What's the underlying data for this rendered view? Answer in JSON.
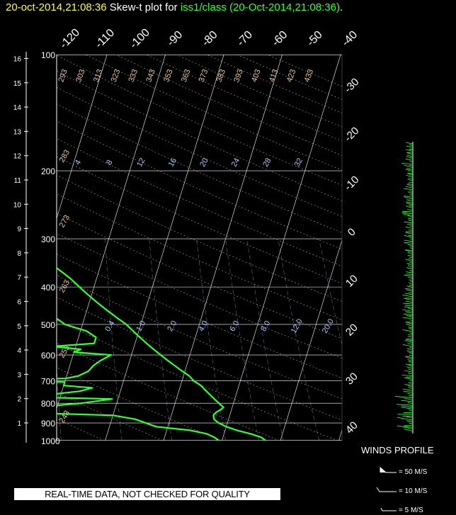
{
  "header": {
    "datetime": "20-oct-2014,21:08:36",
    "mid": " Skew-t plot for ",
    "station": "iss1/class (20-Oct-2014,21:08:36)",
    "end": "."
  },
  "banner": "REAL-TIME DATA, NOT CHECKED FOR QUALITY",
  "winds": {
    "title": "WINDS PROFILE",
    "legend": [
      "= 50 M/S",
      "= 10 M/S",
      "= 5 M/S"
    ]
  },
  "colors": {
    "trace": "#33ff33",
    "grid": "#ffffff",
    "theta": "#e8c8a0",
    "mix": "#a8c8ff",
    "title_date": "#ffff33"
  },
  "chart_data": {
    "type": "line",
    "pressure_ticks": [
      "100",
      "200",
      "300",
      "400",
      "500",
      "600",
      "700",
      "800",
      "900",
      "1000"
    ],
    "height_ticks": [
      "1",
      "2",
      "3",
      "4",
      "5",
      "6",
      "7",
      "8",
      "9",
      "10",
      "11",
      "12",
      "13",
      "14",
      "15",
      "16"
    ],
    "top_temp_labels": [
      "-120",
      "-110",
      "-100",
      "-90",
      "-80",
      "-70",
      "-60",
      "-50",
      "-40"
    ],
    "right_temp_labels": [
      "-30",
      "-20",
      "-10",
      "0",
      "10",
      "20",
      "30",
      "40"
    ],
    "theta_labels_top": [
      "293",
      "303",
      "313",
      "323",
      "333",
      "343",
      "353",
      "363",
      "373",
      "383",
      "393",
      "403",
      "413",
      "423",
      "433"
    ],
    "theta_labels_left": [
      "283",
      "273",
      "263",
      "253",
      "243"
    ],
    "mixing_labels_top": [
      "4",
      "8",
      "12",
      "16",
      "20",
      "24",
      "28",
      "32"
    ],
    "mixing_labels_mid": [
      "0.4",
      "1.0",
      "2.0",
      "4.0",
      "6.0",
      "8.0",
      "12.0",
      "20.0"
    ],
    "ylim_hpa": [
      1000,
      100
    ],
    "series": [
      {
        "points": [
          [
            1000,
            7.5
          ],
          [
            980,
            6.5
          ],
          [
            960,
            4.5
          ],
          [
            940,
            2.0
          ],
          [
            920,
            0.0
          ],
          [
            900,
            -1.5
          ],
          [
            880,
            -2.5
          ],
          [
            860,
            -2.8
          ],
          [
            845,
            -2.5
          ],
          [
            830,
            -1.8
          ],
          [
            820,
            -1.5
          ],
          [
            800,
            -2.5
          ],
          [
            780,
            -3.5
          ],
          [
            760,
            -4.5
          ],
          [
            740,
            -5.5
          ],
          [
            720,
            -6.5
          ],
          [
            700,
            -8.0
          ],
          [
            680,
            -9.0
          ],
          [
            660,
            -10.5
          ],
          [
            640,
            -12.0
          ],
          [
            620,
            -13.5
          ],
          [
            600,
            -15.0
          ],
          [
            580,
            -16.5
          ],
          [
            560,
            -18.0
          ],
          [
            540,
            -19.5
          ],
          [
            520,
            -21.0
          ],
          [
            500,
            -22.5
          ],
          [
            480,
            -24.5
          ],
          [
            460,
            -26.5
          ],
          [
            440,
            -28.5
          ],
          [
            420,
            -30.5
          ],
          [
            400,
            -32.5
          ],
          [
            380,
            -34.5
          ],
          [
            360,
            -37.0
          ],
          [
            340,
            -39.5
          ],
          [
            320,
            -42.0
          ],
          [
            300,
            -45.0
          ],
          [
            290,
            -47.0
          ],
          [
            280,
            -49.0
          ],
          [
            270,
            -50.0
          ],
          [
            260,
            -50.0
          ],
          [
            250,
            -48.0
          ],
          [
            240,
            -46.5
          ],
          [
            230,
            -45.5
          ],
          [
            220,
            -44.5
          ],
          [
            210,
            -44.0
          ],
          [
            200,
            -43.5
          ],
          [
            195,
            -42.8
          ]
        ]
      },
      {
        "points": [
          [
            1000,
            -0.5
          ],
          [
            980,
            -1.5
          ],
          [
            960,
            -3.0
          ],
          [
            940,
            -6.0
          ],
          [
            920,
            -12.0
          ],
          [
            900,
            -14.0
          ],
          [
            880,
            -16.0
          ],
          [
            860,
            -20.0
          ],
          [
            840,
            -43.0
          ],
          [
            830,
            -45.0
          ],
          [
            820,
            -34.0
          ],
          [
            800,
            -26.0
          ],
          [
            780,
            -21.0
          ],
          [
            770,
            -38.0
          ],
          [
            760,
            -32.0
          ],
          [
            745,
            -27.0
          ],
          [
            730,
            -25.0
          ],
          [
            720,
            -30.0
          ],
          [
            705,
            -30.0
          ],
          [
            700,
            -48.0
          ],
          [
            690,
            -30.0
          ],
          [
            680,
            -28.0
          ],
          [
            660,
            -26.5
          ],
          [
            640,
            -26.0
          ],
          [
            620,
            -25.0
          ],
          [
            600,
            -23.5
          ],
          [
            590,
            -30.0
          ],
          [
            580,
            -29.0
          ],
          [
            570,
            -34.0
          ],
          [
            560,
            -27.0
          ],
          [
            540,
            -27.0
          ],
          [
            520,
            -29.0
          ],
          [
            500,
            -33.0
          ],
          [
            480,
            -35.0
          ],
          [
            460,
            -37.0
          ],
          [
            440,
            -41.0
          ],
          [
            420,
            -44.0
          ],
          [
            400,
            -50.0
          ],
          [
            395,
            -55.0
          ],
          [
            390,
            -52.0
          ],
          [
            380,
            -49.0
          ],
          [
            370,
            -50.0
          ],
          [
            360,
            -47.0
          ],
          [
            350,
            -49.0
          ],
          [
            340,
            -48.5
          ],
          [
            330,
            -49.0
          ],
          [
            320,
            -51.0
          ],
          [
            310,
            -50.0
          ],
          [
            300,
            -53.0
          ],
          [
            290,
            -58.0
          ],
          [
            280,
            -61.0
          ],
          [
            270,
            -61.0
          ],
          [
            260,
            -60.0
          ],
          [
            250,
            -61.0
          ],
          [
            240,
            -63.0
          ],
          [
            230,
            -64.0
          ],
          [
            220,
            -65.0
          ],
          [
            210,
            -65.0
          ],
          [
            200,
            -64.0
          ],
          [
            195,
            -64.0
          ]
        ]
      }
    ]
  }
}
